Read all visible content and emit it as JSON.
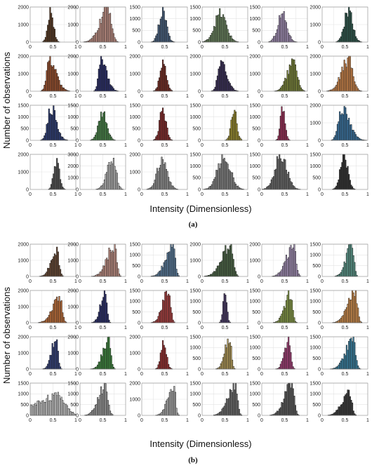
{
  "panels": [
    {
      "caption": "(a)",
      "ylabel": "Number of observations",
      "xlabel": "Intensity (Dimensionless)",
      "xticks": [
        "0",
        "0.5",
        "1"
      ],
      "subplots": [
        {
          "color": "#5a3a22",
          "center": 0.45,
          "width": 0.06,
          "skew": 0,
          "yticks": [
            "0",
            "1000",
            "2000"
          ],
          "ymax": 2000,
          "peak": 1850
        },
        {
          "color": "#c9968a",
          "center": 0.62,
          "width": 0.07,
          "skew": -2,
          "yticks": [
            "0",
            "1000",
            "2000"
          ],
          "ymax": 2000,
          "peak": 2000
        },
        {
          "color": "#4a6484",
          "center": 0.46,
          "width": 0.08,
          "skew": 0,
          "yticks": [
            "0",
            "500",
            "1000",
            "1500"
          ],
          "ymax": 1500,
          "peak": 1350
        },
        {
          "color": "#6c8760",
          "center": 0.4,
          "width": 0.13,
          "skew": 0,
          "yticks": [
            "0",
            "500",
            "1000",
            "1500"
          ],
          "ymax": 1500,
          "peak": 1200
        },
        {
          "color": "#a894bc",
          "center": 0.45,
          "width": 0.1,
          "skew": 0,
          "yticks": [
            "0",
            "500",
            "1000",
            "1500"
          ],
          "ymax": 1500,
          "peak": 1200
        },
        {
          "color": "#2f5a4e",
          "center": 0.58,
          "width": 0.09,
          "skew": 0,
          "yticks": [
            "0",
            "1000",
            "2000"
          ],
          "ymax": 2000,
          "peak": 1850
        },
        {
          "color": "#a0522d",
          "center": 0.42,
          "width": 0.06,
          "skew": 2,
          "yticks": [
            "0",
            "1000",
            "2000"
          ],
          "ymax": 2000,
          "peak": 1800
        },
        {
          "color": "#2a2e6e",
          "center": 0.46,
          "width": 0.05,
          "skew": 2,
          "yticks": [
            "0",
            "1000",
            "2000"
          ],
          "ymax": 2000,
          "peak": 2000
        },
        {
          "color": "#7a2c22",
          "center": 0.47,
          "width": 0.07,
          "skew": 0,
          "yticks": [
            "0",
            "1000",
            "2000"
          ],
          "ymax": 2000,
          "peak": 1600
        },
        {
          "color": "#3a2f5a",
          "center": 0.42,
          "width": 0.07,
          "skew": 1,
          "yticks": [
            "0",
            "1000",
            "2000"
          ],
          "ymax": 2000,
          "peak": 1700
        },
        {
          "color": "#7f8a3a",
          "center": 0.7,
          "width": 0.08,
          "skew": -1,
          "yticks": [
            "0",
            "1000",
            "2000"
          ],
          "ymax": 2000,
          "peak": 1700
        },
        {
          "color": "#d4884a",
          "center": 0.58,
          "width": 0.09,
          "skew": -1,
          "yticks": [
            "0",
            "1000",
            "2000"
          ],
          "ymax": 2000,
          "peak": 1800
        },
        {
          "color": "#2e3f7a",
          "center": 0.45,
          "width": 0.07,
          "skew": 1,
          "yticks": [
            "0",
            "500",
            "1000",
            "1500"
          ],
          "ymax": 1500,
          "peak": 1400
        },
        {
          "color": "#4a8a4a",
          "center": 0.5,
          "width": 0.09,
          "skew": 0,
          "yticks": [
            "0",
            "500",
            "1000",
            "1500"
          ],
          "ymax": 1500,
          "peak": 1150
        },
        {
          "color": "#8a2b2b",
          "center": 0.46,
          "width": 0.07,
          "skew": 0,
          "yticks": [
            "0",
            "500",
            "1000",
            "1500"
          ],
          "ymax": 1500,
          "peak": 1300
        },
        {
          "color": "#a0922e",
          "center": 0.7,
          "width": 0.06,
          "skew": 0,
          "yticks": [
            "0",
            "500",
            "1000",
            "1500"
          ],
          "ymax": 1500,
          "peak": 1250
        },
        {
          "color": "#a0305a",
          "center": 0.46,
          "width": 0.05,
          "skew": 0,
          "yticks": [
            "0",
            "500",
            "1000",
            "1500"
          ],
          "ymax": 1500,
          "peak": 1350
        },
        {
          "color": "#3b78a8",
          "center": 0.42,
          "width": 0.07,
          "skew": 2,
          "yticks": [
            "0",
            "1000",
            "2000"
          ],
          "ymax": 2000,
          "peak": 1850
        },
        {
          "color": "#555555",
          "center": 0.58,
          "width": 0.06,
          "skew": 0,
          "yticks": [
            "0",
            "1000",
            "2000"
          ],
          "ymax": 2000,
          "peak": 1700
        },
        {
          "color": "#bbbbbb",
          "center": 0.72,
          "width": 0.07,
          "skew": -1,
          "yticks": [
            "0",
            "1000",
            "2000",
            "3000"
          ],
          "ymax": 3000,
          "peak": 2800
        },
        {
          "color": "#999999",
          "center": 0.45,
          "width": 0.11,
          "skew": 0,
          "yticks": [
            "0",
            "1000",
            "2000"
          ],
          "ymax": 2000,
          "peak": 1700
        },
        {
          "color": "#8a8a8a",
          "center": 0.48,
          "width": 0.14,
          "skew": 0,
          "yticks": [
            "0",
            "500",
            "1000",
            "1500"
          ],
          "ymax": 1500,
          "peak": 1400
        },
        {
          "color": "#6e6e6e",
          "center": 0.42,
          "width": 0.13,
          "skew": 0,
          "yticks": [
            "0",
            "500",
            "1000",
            "1500"
          ],
          "ymax": 1500,
          "peak": 1450
        },
        {
          "color": "#333333",
          "center": 0.48,
          "width": 0.08,
          "skew": 0,
          "yticks": [
            "0",
            "500",
            "1000",
            "1500"
          ],
          "ymax": 1500,
          "peak": 1450
        }
      ]
    },
    {
      "caption": "(b)",
      "ylabel": "Number of observations",
      "xlabel": "Intensity (Dimensionless)",
      "xticks": [
        "0",
        "0.5",
        "1"
      ],
      "subplots": [
        {
          "color": "#6b4a34",
          "center": 0.58,
          "width": 0.05,
          "skew": -2,
          "yticks": [
            "0",
            "1000",
            "2000"
          ],
          "ymax": 2000,
          "peak": 1650
        },
        {
          "color": "#c9968a",
          "center": 0.75,
          "width": 0.05,
          "skew": -3,
          "yticks": [
            "0",
            "1000",
            "2000"
          ],
          "ymax": 2000,
          "peak": 1900
        },
        {
          "color": "#5b7ea0",
          "center": 0.68,
          "width": 0.05,
          "skew": -3,
          "yticks": [
            "0",
            "500",
            "1000",
            "1500"
          ],
          "ymax": 1500,
          "peak": 1400
        },
        {
          "color": "#4e6a48",
          "center": 0.62,
          "width": 0.06,
          "skew": -3,
          "yticks": [
            "0",
            "1000",
            "2000"
          ],
          "ymax": 2000,
          "peak": 1900
        },
        {
          "color": "#a894bc",
          "center": 0.7,
          "width": 0.05,
          "skew": -3,
          "yticks": [
            "0",
            "1000",
            "2000"
          ],
          "ymax": 2000,
          "peak": 1900
        },
        {
          "color": "#5e9e90",
          "center": 0.66,
          "width": 0.04,
          "skew": -3,
          "yticks": [
            "0",
            "500",
            "1000",
            "1500"
          ],
          "ymax": 1500,
          "peak": 1500
        },
        {
          "color": "#c8733a",
          "center": 0.65,
          "width": 0.05,
          "skew": -3,
          "yticks": [
            "0",
            "1000",
            "2000"
          ],
          "ymax": 2000,
          "peak": 1600
        },
        {
          "color": "#2a2e6e",
          "center": 0.55,
          "width": 0.04,
          "skew": -2,
          "yticks": [
            "0",
            "1000",
            "2000"
          ],
          "ymax": 2000,
          "peak": 1900
        },
        {
          "color": "#b04040",
          "center": 0.58,
          "width": 0.05,
          "skew": -2,
          "yticks": [
            "0",
            "500",
            "1000",
            "1500"
          ],
          "ymax": 1500,
          "peak": 1450
        },
        {
          "color": "#4a3a6a",
          "center": 0.5,
          "width": 0.04,
          "skew": 0,
          "yticks": [
            "0",
            "500",
            "1000",
            "1500"
          ],
          "ymax": 1500,
          "peak": 1400
        },
        {
          "color": "#8aa048",
          "center": 0.62,
          "width": 0.05,
          "skew": -2,
          "yticks": [
            "0",
            "500",
            "1000",
            "1500"
          ],
          "ymax": 1500,
          "peak": 1300
        },
        {
          "color": "#d8934e",
          "center": 0.72,
          "width": 0.05,
          "skew": -3,
          "yticks": [
            "0",
            "500",
            "1000",
            "1500"
          ],
          "ymax": 1500,
          "peak": 1450
        },
        {
          "color": "#34427e",
          "center": 0.57,
          "width": 0.04,
          "skew": -2,
          "yticks": [
            "0",
            "1000",
            "2000"
          ],
          "ymax": 2000,
          "peak": 1900
        },
        {
          "color": "#3f8a3f",
          "center": 0.62,
          "width": 0.05,
          "skew": -2,
          "yticks": [
            "0",
            "1000",
            "2000"
          ],
          "ymax": 2000,
          "peak": 1750
        },
        {
          "color": "#9c3030",
          "center": 0.48,
          "width": 0.06,
          "skew": 0,
          "yticks": [
            "0",
            "1000",
            "2000"
          ],
          "ymax": 2000,
          "peak": 1650
        },
        {
          "color": "#b9a05a",
          "center": 0.6,
          "width": 0.04,
          "skew": -2,
          "yticks": [
            "0",
            "500",
            "1000",
            "1500"
          ],
          "ymax": 1500,
          "peak": 1450
        },
        {
          "color": "#a8407a",
          "center": 0.58,
          "width": 0.05,
          "skew": -1,
          "yticks": [
            "0",
            "500",
            "1000",
            "1500"
          ],
          "ymax": 1500,
          "peak": 1350
        },
        {
          "color": "#3a86a8",
          "center": 0.68,
          "width": 0.05,
          "skew": -3,
          "yticks": [
            "0",
            "500",
            "1000",
            "1500"
          ],
          "ymax": 1500,
          "peak": 1400
        },
        {
          "color": "#d0d0d0",
          "center": 0.62,
          "width": 0.16,
          "skew": -3,
          "yticks": [
            "0",
            "500",
            "1000",
            "1500"
          ],
          "ymax": 1500,
          "peak": 900
        },
        {
          "color": "#a0a0a0",
          "center": 0.55,
          "width": 0.06,
          "skew": -2,
          "yticks": [
            "0",
            "500",
            "1000",
            "1500"
          ],
          "ymax": 1500,
          "peak": 1400
        },
        {
          "color": "#b0b0b0",
          "center": 0.7,
          "width": 0.04,
          "skew": -3,
          "yticks": [
            "0",
            "1000",
            "2000"
          ],
          "ymax": 2000,
          "peak": 1900
        },
        {
          "color": "#707070",
          "center": 0.72,
          "width": 0.05,
          "skew": -3,
          "yticks": [
            "0",
            "500",
            "1000",
            "1500"
          ],
          "ymax": 1500,
          "peak": 1450
        },
        {
          "color": "#5e5e5e",
          "center": 0.66,
          "width": 0.05,
          "skew": -3,
          "yticks": [
            "0",
            "500",
            "1000",
            "1500"
          ],
          "ymax": 1500,
          "peak": 1450
        },
        {
          "color": "#3c3c3c",
          "center": 0.6,
          "width": 0.05,
          "skew": -3,
          "yticks": [
            "0",
            "500",
            "1000",
            "1500"
          ],
          "ymax": 1500,
          "peak": 1100
        }
      ]
    }
  ],
  "chart_data": {
    "type": "bar",
    "xlabel": "Intensity (Dimensionless)",
    "ylabel": "Number of observations",
    "xlim": [
      0,
      1
    ],
    "grid": true,
    "layout": "two figure panels (a) and (b), each a 4 x 6 grid of intensity histograms"
  }
}
